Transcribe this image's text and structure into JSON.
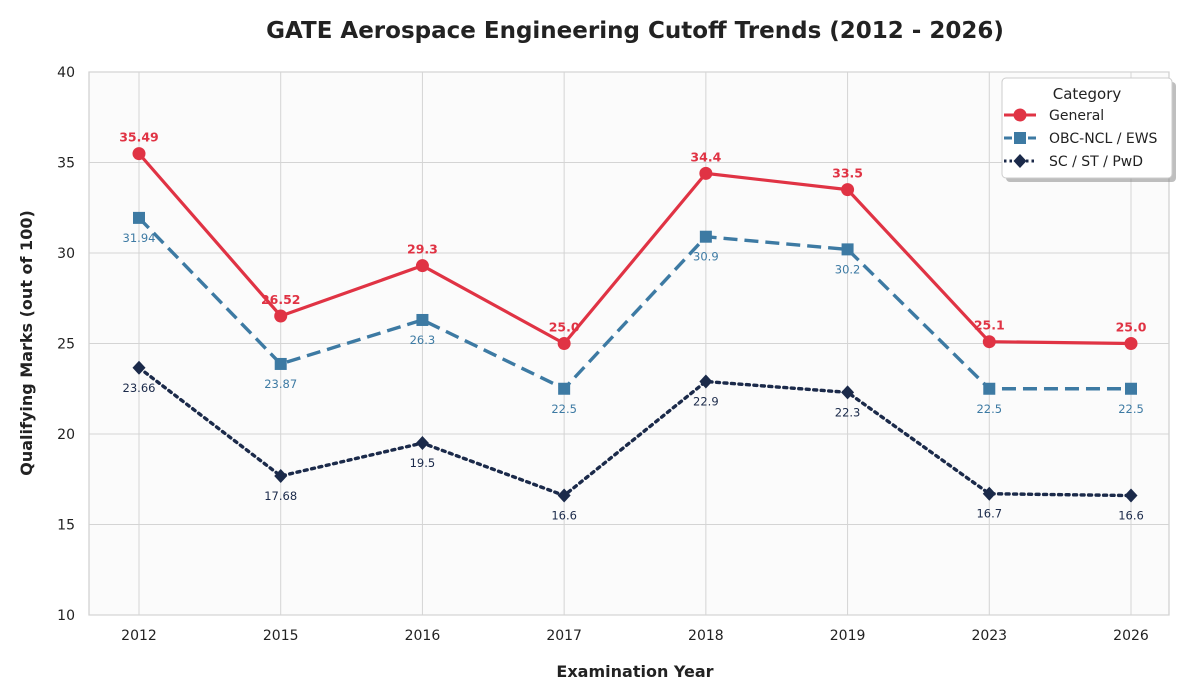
{
  "chart_data": {
    "type": "line",
    "title": "GATE Aerospace Engineering Cutoff Trends (2012 - 2026)",
    "xlabel": "Examination Year",
    "ylabel": "Qualifying Marks (out of 100)",
    "categories": [
      "2012",
      "2015",
      "2016",
      "2017",
      "2018",
      "2019",
      "2023",
      "2026"
    ],
    "ylim": [
      10,
      40
    ],
    "yticks": [
      "10",
      "15",
      "20",
      "25",
      "30",
      "35",
      "40"
    ],
    "grid": true,
    "legend": {
      "title": "Category",
      "position": "top-right"
    },
    "series": [
      {
        "name": "General",
        "values": [
          35.49,
          26.52,
          29.3,
          25.0,
          34.4,
          33.5,
          25.1,
          25.0
        ],
        "labels": [
          "35.49",
          "26.52",
          "29.3",
          "25.0",
          "34.4",
          "33.5",
          "25.1",
          "25.0"
        ],
        "color": "#e03344",
        "marker": "circle",
        "line_style": "solid",
        "label_position": "above",
        "label_bold": true
      },
      {
        "name": "OBC-NCL / EWS",
        "values": [
          31.94,
          23.87,
          26.3,
          22.5,
          30.9,
          30.2,
          22.5,
          22.5
        ],
        "labels": [
          "31.94",
          "23.87",
          "26.3",
          "22.5",
          "30.9",
          "30.2",
          "22.5",
          "22.5"
        ],
        "color": "#3d7aa3",
        "marker": "square",
        "line_style": "dashed",
        "label_position": "below",
        "label_bold": false
      },
      {
        "name": "SC / ST / PwD",
        "values": [
          23.66,
          17.68,
          19.5,
          16.6,
          22.9,
          22.3,
          16.7,
          16.6
        ],
        "labels": [
          "23.66",
          "17.68",
          "19.5",
          "16.6",
          "22.9",
          "22.3",
          "16.7",
          "16.6"
        ],
        "color": "#1b2a4a",
        "marker": "diamond",
        "line_style": "dotted",
        "label_position": "below",
        "label_bold": false
      }
    ]
  }
}
